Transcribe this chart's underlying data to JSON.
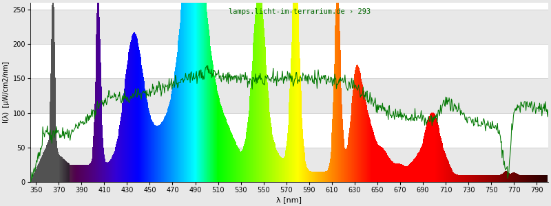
{
  "title": "lamps.licht-im-terrarium.de › 293",
  "xlabel": "λ [nm]",
  "ylabel": "I(λ)  [µW/cm2/nm]",
  "xlim": [
    345,
    800
  ],
  "ylim": [
    0,
    260
  ],
  "yticks": [
    0,
    50,
    100,
    150,
    200,
    250
  ],
  "xticks": [
    350,
    370,
    390,
    410,
    430,
    450,
    470,
    490,
    510,
    530,
    550,
    570,
    590,
    610,
    630,
    650,
    670,
    690,
    710,
    730,
    750,
    770,
    790
  ],
  "bg_color": "#e8e8e8",
  "plot_bg_color": "#ffffff",
  "grid_color": "#cccccc",
  "title_color": "#006600",
  "line_color": "#007700",
  "figsize": [
    8.0,
    3.0
  ],
  "dpi": 100
}
